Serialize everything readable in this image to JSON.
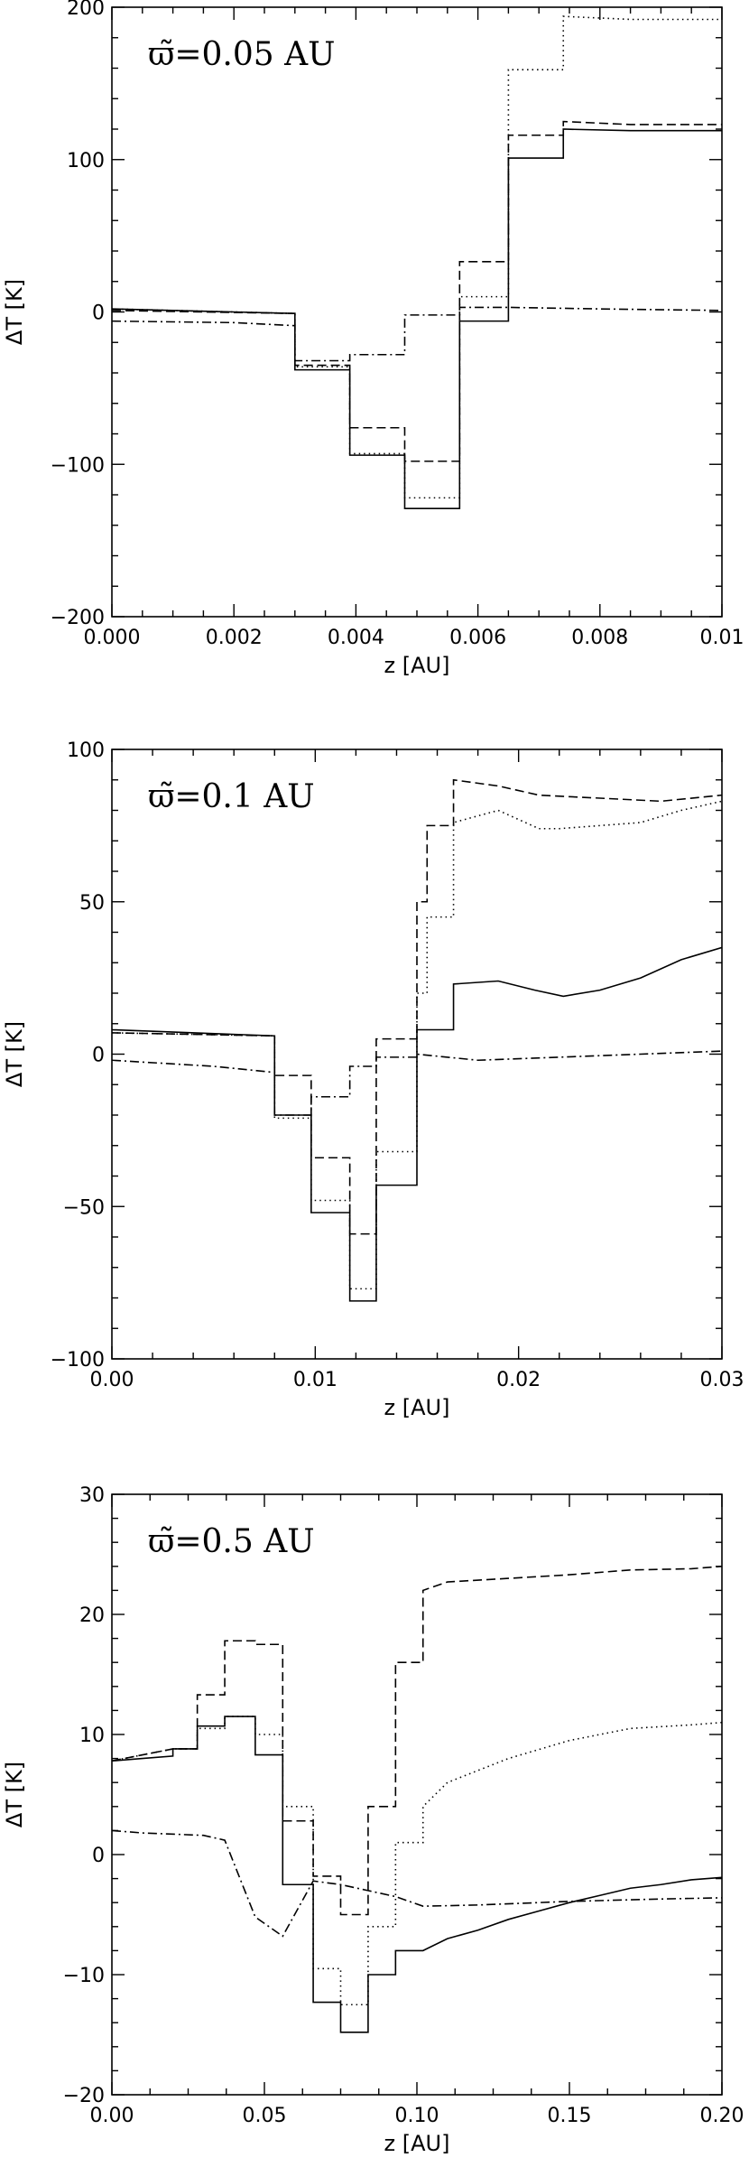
{
  "chart_data": [
    {
      "type": "line",
      "title": "ϖ̃=0.05 AU",
      "xlabel": "z [AU]",
      "ylabel": "ΔT [K]",
      "xlim": [
        0,
        0.01
      ],
      "ylim": [
        -200,
        200
      ],
      "xticks": [
        0,
        0.002,
        0.004,
        0.006,
        0.008,
        0.01
      ],
      "xtick_labels": [
        "0.000",
        "0.002",
        "0.004",
        "0.006",
        "0.008",
        "0.01"
      ],
      "yticks": [
        -200,
        -100,
        0,
        100,
        200
      ],
      "ytick_labels": [
        "−200",
        "−100",
        "0",
        "100",
        "200"
      ],
      "series": [
        {
          "style": "solid",
          "x": [
            0,
            0.003,
            0.003,
            0.0039,
            0.0039,
            0.0048,
            0.0048,
            0.0057,
            0.0057,
            0.0065,
            0.0065,
            0.0074,
            0.0074,
            0.0085,
            0.01
          ],
          "y": [
            2,
            -1,
            -38,
            -38,
            -94,
            -94,
            -129,
            -129,
            -6,
            -6,
            101,
            101,
            120,
            119,
            119
          ]
        },
        {
          "style": "dotted",
          "x": [
            0,
            0.003,
            0.003,
            0.0039,
            0.0039,
            0.0048,
            0.0048,
            0.0057,
            0.0057,
            0.0065,
            0.0065,
            0.0074,
            0.0074,
            0.0085,
            0.01
          ],
          "y": [
            2,
            -1,
            -36,
            -36,
            -93,
            -93,
            -122,
            -122,
            10,
            10,
            159,
            159,
            194,
            192,
            192
          ]
        },
        {
          "style": "dashed",
          "x": [
            0,
            0.003,
            0.003,
            0.0039,
            0.0039,
            0.0048,
            0.0048,
            0.0057,
            0.0057,
            0.0065,
            0.0065,
            0.0074,
            0.0074,
            0.0085,
            0.01
          ],
          "y": [
            1,
            -1,
            -35,
            -35,
            -76,
            -76,
            -98,
            -98,
            33,
            33,
            116,
            116,
            125,
            123,
            123
          ]
        },
        {
          "style": "dashdot",
          "x": [
            0,
            0.002,
            0.003,
            0.003,
            0.0039,
            0.0039,
            0.0048,
            0.0048,
            0.0057,
            0.0057,
            0.0065,
            0.008,
            0.01
          ],
          "y": [
            -6,
            -7,
            -9,
            -32,
            -32,
            -28,
            -28,
            -2,
            -2,
            3,
            3,
            2,
            1
          ]
        }
      ]
    },
    {
      "type": "line",
      "title": "ϖ̃=0.1 AU",
      "xlabel": "z [AU]",
      "ylabel": "ΔT [K]",
      "xlim": [
        0,
        0.03
      ],
      "ylim": [
        -100,
        100
      ],
      "xticks": [
        0,
        0.01,
        0.02,
        0.03
      ],
      "xtick_labels": [
        "0.00",
        "0.01",
        "0.02",
        "0.03"
      ],
      "yticks": [
        -100,
        -50,
        0,
        50,
        100
      ],
      "ytick_labels": [
        "−100",
        "−50",
        "0",
        "50",
        "100"
      ],
      "series": [
        {
          "style": "solid",
          "x": [
            0,
            0.008,
            0.008,
            0.0098,
            0.0098,
            0.0117,
            0.0117,
            0.013,
            0.013,
            0.015,
            0.015,
            0.0168,
            0.0168,
            0.019,
            0.0208,
            0.0222,
            0.024,
            0.026,
            0.028,
            0.03
          ],
          "y": [
            8,
            6,
            -20,
            -20,
            -52,
            -52,
            -81,
            -81,
            -43,
            -43,
            8,
            8,
            23,
            24,
            21,
            19,
            21,
            25,
            31,
            35
          ]
        },
        {
          "style": "dotted",
          "x": [
            0,
            0.008,
            0.008,
            0.0098,
            0.0098,
            0.0117,
            0.0117,
            0.013,
            0.013,
            0.015,
            0.015,
            0.0155,
            0.0155,
            0.0168,
            0.0168,
            0.019,
            0.021,
            0.022,
            0.026,
            0.028,
            0.03
          ],
          "y": [
            7,
            6,
            -21,
            -21,
            -48,
            -48,
            -77,
            -77,
            -32,
            -32,
            20,
            20,
            45,
            45,
            76,
            80,
            74,
            74,
            76,
            80,
            83
          ]
        },
        {
          "style": "dashed",
          "x": [
            0,
            0.008,
            0.008,
            0.0098,
            0.0098,
            0.0117,
            0.0117,
            0.013,
            0.013,
            0.015,
            0.015,
            0.0155,
            0.0155,
            0.0168,
            0.0168,
            0.019,
            0.021,
            0.024,
            0.027,
            0.03
          ],
          "y": [
            7,
            6,
            -7,
            -7,
            -34,
            -34,
            -59,
            -59,
            5,
            5,
            50,
            50,
            75,
            75,
            90,
            88,
            85,
            84,
            83,
            85
          ]
        },
        {
          "style": "dashdot",
          "x": [
            0,
            0.005,
            0.008,
            0.008,
            0.0098,
            0.0098,
            0.0117,
            0.0117,
            0.013,
            0.013,
            0.015,
            0.015,
            0.018,
            0.022,
            0.026,
            0.03
          ],
          "y": [
            -2,
            -4,
            -6,
            -20,
            -20,
            -14,
            -14,
            -4,
            -4,
            -1,
            -1,
            0,
            -2,
            -1,
            0,
            1
          ]
        }
      ]
    },
    {
      "type": "line",
      "title": "ϖ̃=0.5 AU",
      "xlabel": "z [AU]",
      "ylabel": "ΔT [K]",
      "xlim": [
        0,
        0.2
      ],
      "ylim": [
        -20,
        30
      ],
      "xticks": [
        0,
        0.05,
        0.1,
        0.15,
        0.2
      ],
      "xtick_labels": [
        "0.00",
        "0.05",
        "0.10",
        "0.15",
        "0.20"
      ],
      "yticks": [
        -20,
        -10,
        0,
        10,
        20,
        30
      ],
      "ytick_labels": [
        "−20",
        "−10",
        "0",
        "10",
        "20",
        "30"
      ],
      "series": [
        {
          "style": "solid",
          "x": [
            0,
            0.01,
            0.02,
            0.02,
            0.028,
            0.028,
            0.037,
            0.037,
            0.047,
            0.047,
            0.056,
            0.056,
            0.066,
            0.066,
            0.075,
            0.075,
            0.084,
            0.084,
            0.093,
            0.093,
            0.102,
            0.11,
            0.12,
            0.13,
            0.14,
            0.15,
            0.16,
            0.17,
            0.18,
            0.19,
            0.2
          ],
          "y": [
            7.8,
            8.0,
            8.2,
            8.8,
            8.8,
            10.7,
            10.7,
            11.5,
            11.5,
            8.3,
            8.3,
            -2.5,
            -2.5,
            -12.3,
            -12.3,
            -14.8,
            -14.8,
            -10.0,
            -10.0,
            -8.0,
            -8.0,
            -7.0,
            -6.3,
            -5.4,
            -4.7,
            -4.0,
            -3.4,
            -2.8,
            -2.5,
            -2.1,
            -1.9
          ]
        },
        {
          "style": "dotted",
          "x": [
            0,
            0.02,
            0.028,
            0.028,
            0.037,
            0.037,
            0.047,
            0.047,
            0.056,
            0.056,
            0.066,
            0.066,
            0.075,
            0.075,
            0.084,
            0.084,
            0.093,
            0.093,
            0.102,
            0.102,
            0.11,
            0.13,
            0.15,
            0.17,
            0.19,
            0.2
          ],
          "y": [
            7.8,
            8.8,
            8.8,
            10.5,
            10.5,
            11.5,
            11.5,
            10.0,
            10.0,
            4.0,
            4.0,
            -9.5,
            -9.5,
            -12.5,
            -12.5,
            -6.0,
            -6.0,
            1.0,
            1.0,
            4.0,
            6.0,
            8.0,
            9.5,
            10.5,
            10.8,
            11.0
          ]
        },
        {
          "style": "dashed",
          "x": [
            0,
            0.02,
            0.028,
            0.028,
            0.037,
            0.037,
            0.047,
            0.047,
            0.056,
            0.056,
            0.066,
            0.066,
            0.075,
            0.075,
            0.084,
            0.084,
            0.093,
            0.093,
            0.102,
            0.102,
            0.11,
            0.13,
            0.15,
            0.17,
            0.19,
            0.2
          ],
          "y": [
            7.8,
            8.8,
            8.8,
            13.3,
            13.3,
            17.8,
            17.8,
            17.5,
            17.5,
            2.8,
            2.8,
            -1.8,
            -1.8,
            -5.0,
            -5.0,
            4.0,
            4.0,
            16.0,
            16.0,
            22.0,
            22.7,
            23.0,
            23.3,
            23.7,
            23.8,
            24.0
          ]
        },
        {
          "style": "dashdot",
          "x": [
            0,
            0.01,
            0.03,
            0.037,
            0.037,
            0.047,
            0.047,
            0.056,
            0.056,
            0.066,
            0.066,
            0.075,
            0.075,
            0.084,
            0.084,
            0.093,
            0.093,
            0.102,
            0.12,
            0.15,
            0.18,
            0.2
          ],
          "y": [
            2.0,
            1.8,
            1.6,
            1.2,
            1.2,
            -5.2,
            -5.2,
            -6.8,
            -6.8,
            -2.2,
            -2.2,
            -2.5,
            -2.5,
            -3.0,
            -3.0,
            -3.5,
            -3.5,
            -4.3,
            -4.2,
            -3.9,
            -3.7,
            -3.6
          ]
        }
      ]
    }
  ]
}
